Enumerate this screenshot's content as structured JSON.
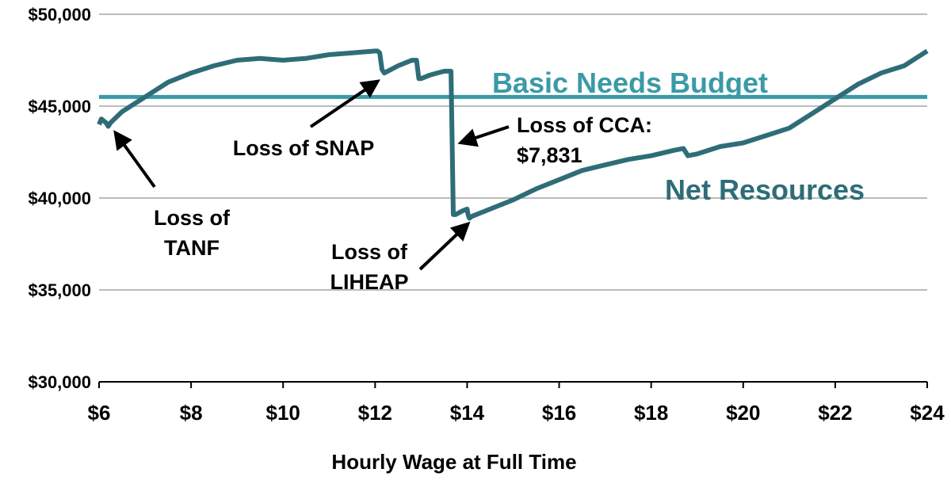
{
  "chart_data": {
    "type": "line",
    "xlabel": "Hourly Wage at Full Time",
    "ylabel": "",
    "xlim": [
      6,
      24
    ],
    "ylim": [
      30000,
      50000
    ],
    "x_ticks": [
      6,
      8,
      10,
      12,
      14,
      16,
      18,
      20,
      22,
      24
    ],
    "x_tick_labels": [
      "$6",
      "$8",
      "$10",
      "$12",
      "$14",
      "$16",
      "$18",
      "$20",
      "$22",
      "$24"
    ],
    "y_ticks": [
      30000,
      35000,
      40000,
      45000,
      50000
    ],
    "y_tick_labels": [
      "$30,000",
      "$35,000",
      "$40,000",
      "$45,000",
      "$50,000"
    ],
    "grid": "horizontal",
    "colors": {
      "basic_needs": "#3a9aa6",
      "net_resources": "#2e6d78",
      "grid": "#a6a6a6"
    },
    "series": [
      {
        "name": "Basic Needs Budget",
        "x": [
          6,
          24
        ],
        "y": [
          45500,
          45500
        ]
      },
      {
        "name": "Net Resources",
        "x": [
          6.0,
          6.05,
          6.1,
          6.15,
          6.2,
          6.25,
          6.5,
          7.0,
          7.5,
          8.0,
          8.5,
          9.0,
          9.5,
          10.0,
          10.5,
          11.0,
          11.5,
          12.0,
          12.05,
          12.1,
          12.15,
          12.2,
          12.5,
          12.8,
          12.9,
          12.95,
          13.0,
          13.2,
          13.5,
          13.65,
          13.7,
          13.75,
          13.9,
          14.0,
          14.02,
          14.05,
          14.1,
          14.5,
          15.0,
          15.5,
          16.0,
          16.5,
          17.0,
          17.5,
          18.0,
          18.5,
          18.7,
          18.75,
          18.8,
          19.0,
          19.5,
          20.0,
          20.5,
          21.0,
          21.5,
          22.0,
          22.5,
          23.0,
          23.5,
          24.0
        ],
        "y": [
          44000,
          44300,
          44200,
          44100,
          43900,
          44100,
          44700,
          45500,
          46300,
          46800,
          47200,
          47500,
          47600,
          47500,
          47600,
          47800,
          47900,
          48000,
          48000,
          47900,
          47000,
          46800,
          47200,
          47500,
          47500,
          46500,
          46500,
          46700,
          46900,
          46900,
          39100,
          39100,
          39300,
          39400,
          39100,
          38900,
          39000,
          39400,
          39900,
          40500,
          41000,
          41500,
          41800,
          42100,
          42300,
          42600,
          42700,
          42500,
          42300,
          42400,
          42800,
          43000,
          43400,
          43800,
          44600,
          45400,
          46200,
          46800,
          47200,
          48000
        ]
      }
    ],
    "labels": {
      "basic_needs": "Basic Needs Budget",
      "net_resources": "Net Resources"
    },
    "annotations": [
      {
        "id": "tanf",
        "lines": [
          "Loss of",
          "TANF"
        ]
      },
      {
        "id": "snap",
        "lines": [
          "Loss of SNAP"
        ]
      },
      {
        "id": "cca",
        "lines": [
          "Loss of CCA:",
          "$7,831"
        ]
      },
      {
        "id": "liheap",
        "lines": [
          "Loss of",
          "LIHEAP"
        ]
      }
    ]
  }
}
